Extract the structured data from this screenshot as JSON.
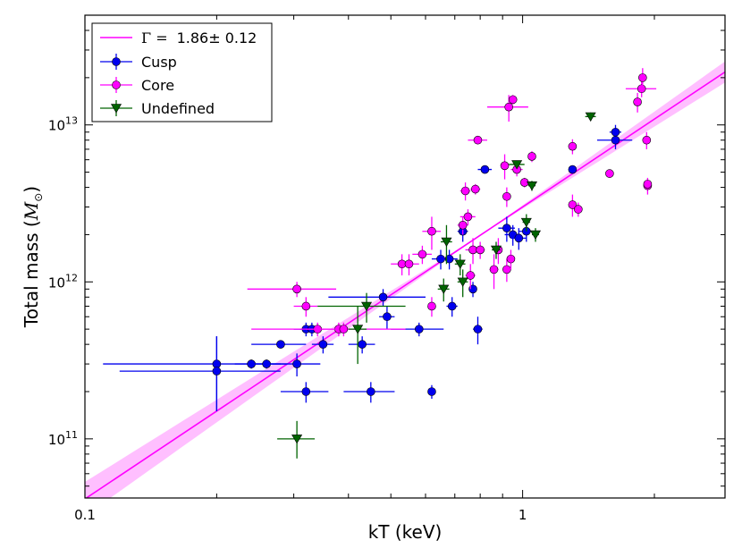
{
  "chart_data": {
    "type": "scatter",
    "x_scale": "log",
    "y_scale": "log",
    "xlim": [
      0.1,
      2.9
    ],
    "ylim": [
      42000000000.0,
      50000000000000.0
    ],
    "xlabel": "kT (keV)",
    "ylabel_text": "Total mass (",
    "ylabel_math": "M",
    "ylabel_sub": "⊙",
    "ylabel_close": ")",
    "x_ticks": [
      {
        "value": 0.1,
        "label": "0.1"
      },
      {
        "value": 1,
        "label": "1"
      }
    ],
    "y_ticks": [
      {
        "value": 100000000000.0,
        "base": "10",
        "exp": "11"
      },
      {
        "value": 1000000000000.0,
        "base": "10",
        "exp": "12"
      },
      {
        "value": 10000000000000.0,
        "base": "10",
        "exp": "13"
      }
    ],
    "fit": {
      "label_gamma": "Γ =",
      "label_value": "1.86± 0.12",
      "slope": 1.86,
      "slope_err": 0.12,
      "pivot_x": 1.0,
      "pivot_y": 3000000000000.0,
      "band_pivot_x": 0.8,
      "color": "#ff00ff",
      "band_color": "#ff00ff"
    },
    "legend_position": "top-left",
    "series": [
      {
        "name": "Cusp",
        "color": "#0000ee",
        "marker": "circle",
        "points": [
          [
            0.2,
            300000000000.0,
            0.09,
            0.09,
            150000000000.0,
            150000000000.0
          ],
          [
            0.2,
            270000000000.0,
            0.08,
            0.08,
            120000000000.0,
            180000000000.0
          ],
          [
            0.24,
            300000000000.0,
            0.02,
            0.02,
            20000000000.0,
            20000000000.0
          ],
          [
            0.26,
            300000000000.0,
            0.02,
            0.02,
            20000000000.0,
            20000000000.0
          ],
          [
            0.28,
            400000000000.0,
            0.04,
            0.04,
            20000000000.0,
            20000000000.0
          ],
          [
            0.305,
            300000000000.0,
            0.04,
            0.04,
            50000000000.0,
            50000000000.0
          ],
          [
            0.32,
            200000000000.0,
            0.04,
            0.04,
            30000000000.0,
            30000000000.0
          ],
          [
            0.32,
            500000000000.0,
            0.02,
            0.02,
            50000000000.0,
            50000000000.0
          ],
          [
            0.33,
            500000000000.0,
            0.02,
            0.02,
            50000000000.0,
            50000000000.0
          ],
          [
            0.35,
            400000000000.0,
            0.02,
            0.02,
            50000000000.0,
            50000000000.0
          ],
          [
            0.45,
            200000000000.0,
            0.06,
            0.06,
            30000000000.0,
            30000000000.0
          ],
          [
            0.48,
            800000000000.0,
            0.12,
            0.12,
            100000000000.0,
            100000000000.0
          ],
          [
            0.49,
            600000000000.0,
            0.02,
            0.02,
            100000000000.0,
            100000000000.0
          ],
          [
            0.43,
            400000000000.0,
            0.03,
            0.03,
            50000000000.0,
            50000000000.0
          ],
          [
            0.58,
            500000000000.0,
            0.08,
            0.08,
            50000000000.0,
            50000000000.0
          ],
          [
            0.62,
            200000000000.0,
            0.01,
            0.01,
            20000000000.0,
            20000000000.0
          ],
          [
            0.65,
            1400000000000.0,
            0.03,
            0.03,
            200000000000.0,
            200000000000.0
          ],
          [
            0.68,
            1400000000000.0,
            0.03,
            0.03,
            200000000000.0,
            200000000000.0
          ],
          [
            0.69,
            700000000000.0,
            0.02,
            0.02,
            100000000000.0,
            100000000000.0
          ],
          [
            0.73,
            2100000000000.0,
            0.02,
            0.02,
            300000000000.0,
            300000000000.0
          ],
          [
            0.77,
            900000000000.0,
            0.01,
            0.01,
            100000000000.0,
            100000000000.0
          ],
          [
            0.79,
            500000000000.0,
            0.02,
            0.02,
            100000000000.0,
            100000000000.0
          ],
          [
            0.82,
            5200000000000.0,
            0.03,
            0.03,
            300000000000.0,
            300000000000.0
          ],
          [
            0.92,
            2200000000000.0,
            0.04,
            0.04,
            400000000000.0,
            400000000000.0
          ],
          [
            0.95,
            2000000000000.0,
            0.04,
            0.04,
            300000000000.0,
            300000000000.0
          ],
          [
            0.98,
            1900000000000.0,
            0.04,
            0.04,
            300000000000.0,
            300000000000.0
          ],
          [
            1.02,
            2100000000000.0,
            0.04,
            0.04,
            300000000000.0,
            300000000000.0
          ],
          [
            1.3,
            5200000000000.0,
            0.01,
            0.01,
            300000000000.0,
            300000000000.0
          ],
          [
            1.63,
            9000000000000.0,
            0.05,
            0.05,
            1000000000000.0,
            1000000000000.0
          ],
          [
            1.63,
            8000000000000.0,
            0.15,
            0.15,
            1000000000000.0,
            1000000000000.0
          ]
        ]
      },
      {
        "name": "Core",
        "color": "#ff00ff",
        "marker": "circle",
        "points": [
          [
            0.305,
            900000000000.0,
            0.07,
            0.07,
            100000000000.0,
            100000000000.0
          ],
          [
            0.32,
            700000000000.0,
            0.02,
            0.02,
            100000000000.0,
            100000000000.0
          ],
          [
            0.34,
            500000000000.0,
            0.02,
            0.02,
            50000000000.0,
            50000000000.0
          ],
          [
            0.38,
            500000000000.0,
            0.02,
            0.02,
            50000000000.0,
            50000000000.0
          ],
          [
            0.39,
            500000000000.0,
            0.15,
            0.15,
            50000000000.0,
            50000000000.0
          ],
          [
            0.53,
            1300000000000.0,
            0.03,
            0.03,
            200000000000.0,
            200000000000.0
          ],
          [
            0.55,
            1300000000000.0,
            0.03,
            0.03,
            200000000000.0,
            200000000000.0
          ],
          [
            0.59,
            1500000000000.0,
            0.03,
            0.03,
            200000000000.0,
            200000000000.0
          ],
          [
            0.62,
            2100000000000.0,
            0.03,
            0.03,
            500000000000.0,
            500000000000.0
          ],
          [
            0.62,
            700000000000.0,
            0.01,
            0.01,
            100000000000.0,
            100000000000.0
          ],
          [
            0.73,
            2300000000000.0,
            0.02,
            0.02,
            300000000000.0,
            300000000000.0
          ],
          [
            0.74,
            3800000000000.0,
            0.02,
            0.02,
            500000000000.0,
            500000000000.0
          ],
          [
            0.75,
            2600000000000.0,
            0.03,
            0.03,
            300000000000.0,
            300000000000.0
          ],
          [
            0.77,
            1600000000000.0,
            0.03,
            0.03,
            300000000000.0,
            300000000000.0
          ],
          [
            0.78,
            3900000000000.0,
            0.02,
            0.02,
            300000000000.0,
            300000000000.0
          ],
          [
            0.79,
            8000000000000.0,
            0.04,
            0.04,
            400000000000.0,
            400000000000.0
          ],
          [
            0.8,
            1600000000000.0,
            0.02,
            0.02,
            200000000000.0,
            200000000000.0
          ],
          [
            0.86,
            1200000000000.0,
            0.02,
            0.02,
            300000000000.0,
            300000000000.0
          ],
          [
            0.88,
            1600000000000.0,
            0.02,
            0.02,
            300000000000.0,
            300000000000.0
          ],
          [
            0.91,
            5500000000000.0,
            0.02,
            0.02,
            1000000000000.0,
            1000000000000.0
          ],
          [
            0.92,
            3500000000000.0,
            0.02,
            0.02,
            500000000000.0,
            500000000000.0
          ],
          [
            0.92,
            1200000000000.0,
            0.02,
            0.02,
            200000000000.0,
            200000000000.0
          ],
          [
            0.93,
            13000000000000.0,
            0.1,
            0.1,
            2500000000000.0,
            2500000000000.0
          ],
          [
            0.95,
            14500000000000.0,
            0.02,
            0.02,
            1000000000000.0,
            1000000000000.0
          ],
          [
            0.94,
            1400000000000.0,
            0.02,
            0.02,
            200000000000.0,
            200000000000.0
          ],
          [
            0.97,
            5200000000000.0,
            0.03,
            0.03,
            500000000000.0,
            500000000000.0
          ],
          [
            1.01,
            4300000000000.0,
            0.02,
            0.02,
            300000000000.0,
            300000000000.0
          ],
          [
            1.05,
            6300000000000.0,
            0.02,
            0.02,
            500000000000.0,
            500000000000.0
          ],
          [
            1.3,
            7300000000000.0,
            0.02,
            0.02,
            800000000000.0,
            800000000000.0
          ],
          [
            1.3,
            3100000000000.0,
            0.02,
            0.02,
            500000000000.0,
            500000000000.0
          ],
          [
            1.34,
            2900000000000.0,
            0.03,
            0.03,
            300000000000.0,
            300000000000.0
          ],
          [
            1.58,
            4900000000000.0,
            0.02,
            0.02,
            300000000000.0,
            300000000000.0
          ],
          [
            1.83,
            14000000000000.0,
            0.02,
            0.02,
            2000000000000.0,
            2000000000000.0
          ],
          [
            1.87,
            17000000000000.0,
            0.15,
            0.15,
            2000000000000.0,
            2000000000000.0
          ],
          [
            1.88,
            20000000000000.0,
            0.02,
            0.02,
            3000000000000.0,
            3000000000000.0
          ],
          [
            1.92,
            8000000000000.0,
            0.02,
            0.02,
            1000000000000.0,
            1000000000000.0
          ],
          [
            1.93,
            4100000000000.0,
            0.04,
            0.04,
            500000000000.0,
            500000000000.0
          ],
          [
            1.93,
            4200000000000.0,
            0.02,
            0.02,
            300000000000.0,
            300000000000.0
          ],
          [
            0.76,
            1100000000000.0,
            0.02,
            0.02,
            200000000000.0,
            200000000000.0
          ]
        ]
      },
      {
        "name": "Undefined",
        "color": "#006400",
        "marker": "triangle-down",
        "points": [
          [
            0.305,
            100000000000.0,
            0.03,
            0.03,
            25000000000.0,
            30000000000.0
          ],
          [
            0.42,
            500000000000.0,
            0.02,
            0.02,
            200000000000.0,
            200000000000.0
          ],
          [
            0.44,
            700000000000.0,
            0.1,
            0.1,
            150000000000.0,
            150000000000.0
          ],
          [
            0.66,
            900000000000.0,
            0.02,
            0.02,
            150000000000.0,
            150000000000.0
          ],
          [
            0.67,
            1800000000000.0,
            0.02,
            0.02,
            500000000000.0,
            500000000000.0
          ],
          [
            0.72,
            1300000000000.0,
            0.02,
            0.02,
            200000000000.0,
            200000000000.0
          ],
          [
            0.73,
            1000000000000.0,
            0.02,
            0.02,
            200000000000.0,
            200000000000.0
          ],
          [
            0.87,
            1600000000000.0,
            0.02,
            0.02,
            200000000000.0,
            200000000000.0
          ],
          [
            0.97,
            5600000000000.0,
            0.04,
            0.04,
            300000000000.0,
            300000000000.0
          ],
          [
            1.02,
            2400000000000.0,
            0.02,
            0.02,
            300000000000.0,
            300000000000.0
          ],
          [
            1.05,
            4100000000000.0,
            0.02,
            0.02,
            300000000000.0,
            300000000000.0
          ],
          [
            1.07,
            2000000000000.0,
            0.02,
            0.02,
            200000000000.0,
            200000000000.0
          ],
          [
            1.43,
            11300000000000.0,
            0.04,
            0.04,
            700000000000.0,
            700000000000.0
          ]
        ]
      }
    ]
  }
}
